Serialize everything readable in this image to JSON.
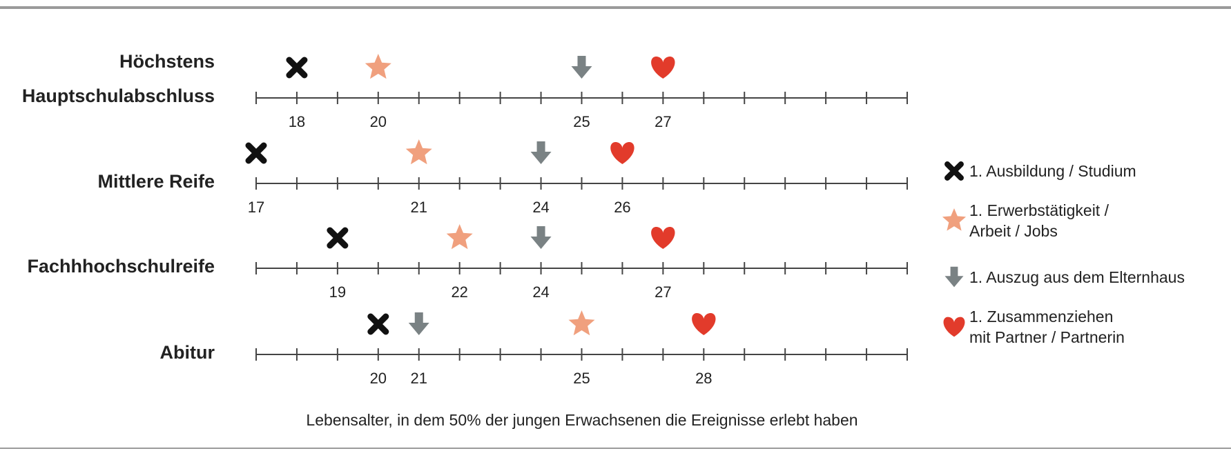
{
  "chart_data": {
    "type": "timeline",
    "categories": [
      "Höchstens\nHauptschulabschluss",
      "Mittlere Reife",
      "Fachhhochschulreife",
      "Abitur"
    ],
    "series": [
      {
        "name": "1. Ausbildung / Studium",
        "color": "#111111",
        "marker": "cross",
        "values": [
          18,
          17,
          19,
          20
        ]
      },
      {
        "name": "1. Erwerbstätigkeit /\nArbeit / Jobs",
        "color": "#f0a07e",
        "marker": "star",
        "values": [
          20,
          21,
          22,
          25
        ]
      },
      {
        "name": "1. Auszug aus dem Elternhaus",
        "color": "#7a8284",
        "marker": "arrow",
        "values": [
          25,
          24,
          24,
          21
        ]
      },
      {
        "name": "1. Zusammenziehen\nmit Partner / Partnerin",
        "color": "#e23b2b",
        "marker": "heart",
        "values": [
          27,
          26,
          27,
          28
        ]
      }
    ],
    "xlim": [
      17,
      33
    ],
    "xticks": [
      17,
      18,
      19,
      20,
      21,
      22,
      23,
      24,
      25,
      26,
      27,
      28,
      29,
      30,
      31,
      32,
      33
    ],
    "xlabel": "Lebensalter, in dem 50% der jungen Erwachsenen die Ereignisse erlebt haben"
  }
}
